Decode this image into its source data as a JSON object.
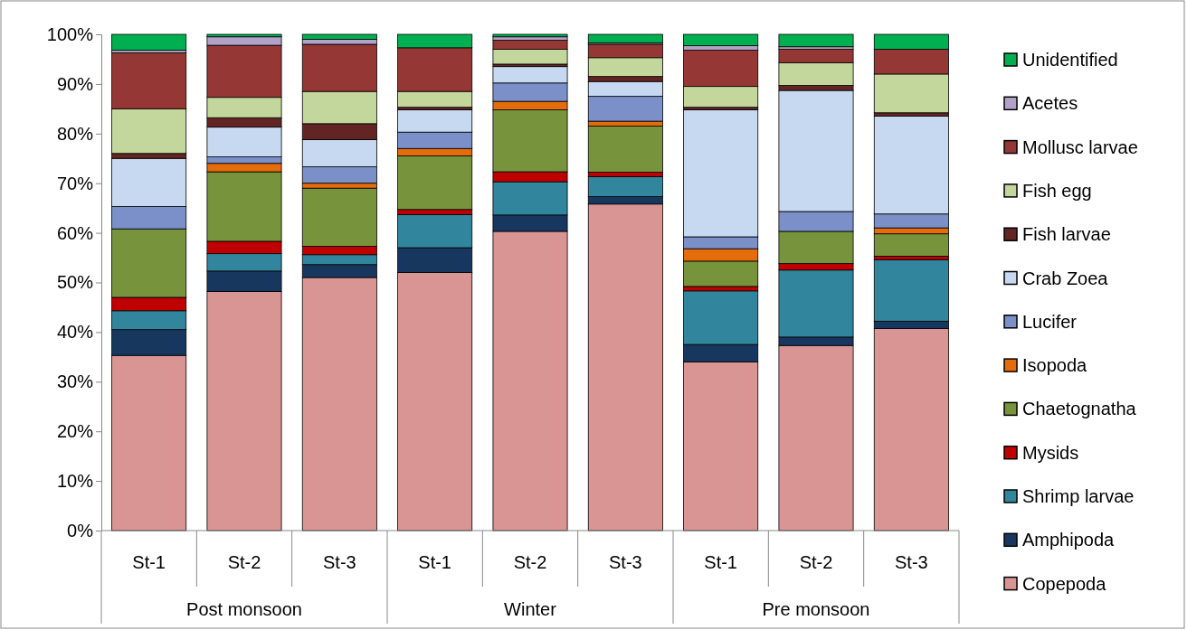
{
  "chart_data": {
    "type": "bar",
    "stacked": true,
    "legend": "right",
    "grid": false,
    "categories": [
      "St-1",
      "St-2",
      "St-3",
      "St-1",
      "St-2",
      "St-3",
      "St-1",
      "St-2",
      "St-3"
    ],
    "annotations": [
      "Post monsoon",
      "Winter",
      "Pre monsoon"
    ],
    "ylim": [
      0,
      100
    ],
    "yticks": [
      {
        "value": 0,
        "label": "0%"
      },
      {
        "value": 10,
        "label": "10%"
      },
      {
        "value": 20,
        "label": "20%"
      },
      {
        "value": 30,
        "label": "30%"
      },
      {
        "value": 40,
        "label": "40%"
      },
      {
        "value": 50,
        "label": "50%"
      },
      {
        "value": 60,
        "label": "60%"
      },
      {
        "value": 70,
        "label": "70%"
      },
      {
        "value": 80,
        "label": "80%"
      },
      {
        "value": 90,
        "label": "90%"
      },
      {
        "value": 100,
        "label": "100%"
      }
    ],
    "series": [
      {
        "name": "Copepoda",
        "color": "#d99594",
        "values": [
          35.3,
          48.2,
          51,
          52,
          60.3,
          65.8,
          34,
          37.3,
          40.7
        ]
      },
      {
        "name": "Amphipoda",
        "color": "#17375e",
        "values": [
          5.2,
          4.1,
          2.6,
          5,
          3.3,
          1.5,
          3.5,
          1.7,
          1.5
        ]
      },
      {
        "name": "Shrimp larvae",
        "color": "#31859c",
        "values": [
          3.8,
          3.5,
          2.0,
          6.7,
          6.7,
          4.0,
          10.8,
          13.5,
          12.4
        ]
      },
      {
        "name": "Mysids",
        "color": "#c00000",
        "values": [
          2.7,
          2.5,
          1.7,
          1.0,
          2.0,
          0.9,
          0.9,
          1.3,
          0.7
        ]
      },
      {
        "name": "Chaetognatha",
        "color": "#77933c",
        "values": [
          13.8,
          14.0,
          11.7,
          10.8,
          12.5,
          9.3,
          5.1,
          6.5,
          4.5
        ]
      },
      {
        "name": "Isopoda",
        "color": "#e46c0a",
        "values": [
          0,
          1.7,
          1.0,
          1.5,
          1.7,
          1.0,
          2.5,
          0,
          1.2
        ]
      },
      {
        "name": "Lucifer",
        "color": "#7b8fc9",
        "values": [
          4.5,
          1.3,
          3.3,
          3.3,
          3.7,
          5.0,
          2.4,
          4.0,
          2.8
        ]
      },
      {
        "name": "Crab Zoea",
        "color": "#c6d9f1",
        "values": [
          9.7,
          6.0,
          5.5,
          4.5,
          3.3,
          3.0,
          25.6,
          24.4,
          19.7
        ]
      },
      {
        "name": "Fish larvae",
        "color": "#632523",
        "values": [
          1.0,
          1.9,
          3.2,
          0.5,
          0.5,
          1.0,
          0.5,
          1.0,
          0.7
        ]
      },
      {
        "name": "Fish egg",
        "color": "#c3d69b",
        "values": [
          9.0,
          4.1,
          6.5,
          3.2,
          3.0,
          3.8,
          4.2,
          4.6,
          7.8
        ]
      },
      {
        "name": "Mollusc larvae",
        "color": "#953735",
        "values": [
          11.3,
          10.5,
          9.5,
          8.8,
          1.8,
          2.7,
          7.3,
          2.7,
          5.0
        ]
      },
      {
        "name": "Acetes",
        "color": "#b3a2c7",
        "values": [
          0.5,
          1.7,
          1.0,
          0,
          0.7,
          0.3,
          0.9,
          0.5,
          0
        ]
      },
      {
        "name": "Unidentified",
        "color": "#00b050",
        "values": [
          3.2,
          0.5,
          1.0,
          2.7,
          0.5,
          1.7,
          2.3,
          2.5,
          3.0
        ]
      }
    ]
  }
}
